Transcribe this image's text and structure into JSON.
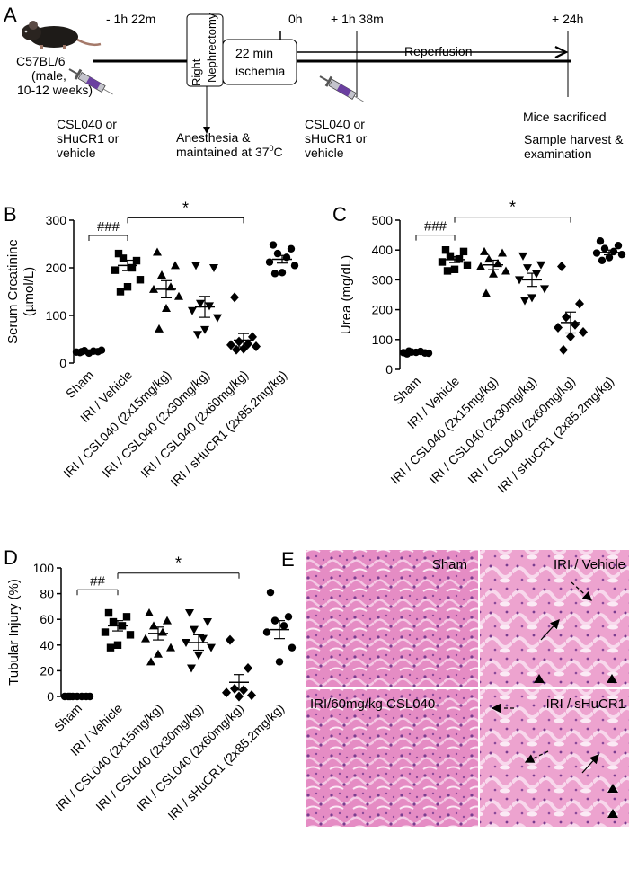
{
  "panel_letters": {
    "a": "A",
    "b": "B",
    "c": "C",
    "d": "D",
    "e": "E"
  },
  "timeline": {
    "strain": "C57BL/6",
    "strain_detail_1": "(male,",
    "strain_detail_2": "10-12 weeks)",
    "t_minus": "- 1h 22m",
    "t_zero": "0h",
    "t_plus": "+ 1h 38m",
    "t_end": "+ 24h",
    "nephrectomy_1": "Right",
    "nephrectomy_2": "Nephrectomy",
    "ischemia_1": "22 min",
    "ischemia_2": "ischemia",
    "reperfusion": "Reperfusion",
    "dose_pre": [
      "CSL040 or",
      "sHuCR1 or",
      "vehicle"
    ],
    "anesthesia_1": "Anesthesia &",
    "anesthesia_2": "maintained at 37",
    "anesthesia_sup": "0",
    "anesthesia_unit": "C",
    "dose_post": [
      "CSL040 or",
      "sHuCR1 or",
      "vehicle"
    ],
    "sacrificed": "Mice sacrificed",
    "harvest_1": "Sample harvest &",
    "harvest_2": "examination"
  },
  "categories": [
    "Sham",
    "IRI / Vehicle",
    "IRI / CSL040 (2x15mg/kg)",
    "IRI / CSL040 (2x30mg/kg)",
    "IRI / CSL040 (2x60mg/kg)",
    "IRI / sHuCR1 (2x85.2mg/kg)"
  ],
  "chart_data": [
    {
      "type": "scatter",
      "ylabel": "Serum Creatinine",
      "ylabel_unit": "(µmol/L)",
      "ylim": [
        0,
        300
      ],
      "yticks": [
        0,
        100,
        200,
        300
      ],
      "markers": [
        "circle",
        "square",
        "triangle",
        "triangle-down",
        "diamond",
        "circle"
      ],
      "annotations": [
        {
          "text": "###",
          "from": 0,
          "to": 1,
          "y": 268
        },
        {
          "text": "*",
          "from": 1,
          "to": 4,
          "y": 305
        }
      ],
      "series": [
        {
          "points": [
            22,
            24,
            26,
            25,
            23,
            27,
            21,
            24
          ],
          "mean": 24,
          "sem": 2
        },
        {
          "points": [
            230,
            215,
            220,
            200,
            195,
            175,
            160,
            150
          ],
          "mean": 205,
          "sem": 11
        },
        {
          "points": [
            233,
            205,
            185,
            160,
            155,
            140,
            115,
            72
          ],
          "mean": 155,
          "sem": 18
        },
        {
          "points": [
            205,
            200,
            125,
            120,
            110,
            95,
            70,
            60
          ],
          "mean": 118,
          "sem": 22
        },
        {
          "points": [
            138,
            55,
            45,
            40,
            38,
            35,
            30,
            28
          ],
          "mean": 48,
          "sem": 14
        },
        {
          "points": [
            248,
            240,
            230,
            222,
            212,
            205,
            190,
            188
          ],
          "mean": 218,
          "sem": 8
        }
      ]
    },
    {
      "type": "scatter",
      "ylabel": "Urea (mg/dL)",
      "ylabel_unit": "",
      "ylim": [
        0,
        500
      ],
      "yticks": [
        0,
        100,
        200,
        300,
        400,
        500
      ],
      "markers": [
        "circle",
        "square",
        "triangle",
        "triangle-down",
        "diamond",
        "circle"
      ],
      "annotations": [
        {
          "text": "###",
          "from": 0,
          "to": 1,
          "y": 450
        },
        {
          "text": "*",
          "from": 1,
          "to": 4,
          "y": 510
        }
      ],
      "series": [
        {
          "points": [
            52,
            55,
            58,
            60,
            56,
            54,
            57,
            61
          ],
          "mean": 57,
          "sem": 3
        },
        {
          "points": [
            400,
            395,
            380,
            370,
            360,
            350,
            335,
            330
          ],
          "mean": 368,
          "sem": 10
        },
        {
          "points": [
            395,
            390,
            370,
            355,
            345,
            330,
            320,
            255
          ],
          "mean": 350,
          "sem": 16
        },
        {
          "points": [
            380,
            350,
            340,
            320,
            300,
            270,
            240,
            230
          ],
          "mean": 300,
          "sem": 22
        },
        {
          "points": [
            345,
            220,
            175,
            150,
            140,
            125,
            110,
            65
          ],
          "mean": 157,
          "sem": 35
        },
        {
          "points": [
            430,
            415,
            405,
            395,
            390,
            385,
            375,
            365
          ],
          "mean": 392,
          "sem": 8
        }
      ]
    },
    {
      "type": "scatter",
      "ylabel": "Tubular Injury (%)",
      "ylabel_unit": "",
      "ylim": [
        0,
        100
      ],
      "yticks": [
        0,
        20,
        40,
        60,
        80,
        100
      ],
      "markers": [
        "circle",
        "square",
        "triangle",
        "triangle-down",
        "diamond",
        "circle"
      ],
      "annotations": [
        {
          "text": "##",
          "from": 0,
          "to": 1,
          "y": 83
        },
        {
          "text": "*",
          "from": 1,
          "to": 4,
          "y": 96
        }
      ],
      "series": [
        {
          "points": [
            0,
            0,
            0,
            0,
            0,
            0,
            0,
            0
          ],
          "mean": 0,
          "sem": 0
        },
        {
          "points": [
            65,
            62,
            58,
            55,
            50,
            48,
            40,
            38
          ],
          "mean": 55,
          "sem": 4
        },
        {
          "points": [
            65,
            59,
            55,
            50,
            45,
            38,
            33,
            27
          ],
          "mean": 49,
          "sem": 5
        },
        {
          "points": [
            65,
            58,
            52,
            45,
            42,
            38,
            32,
            22
          ],
          "mean": 42,
          "sem": 6
        },
        {
          "points": [
            44,
            22,
            6,
            5,
            3,
            1,
            0
          ],
          "mean": 11,
          "sem": 6
        },
        {
          "points": [
            81,
            62,
            59,
            55,
            50,
            38,
            27
          ],
          "mean": 52,
          "sem": 7
        }
      ]
    }
  ],
  "histology": {
    "sham": "Sham",
    "vehicle": "IRI / Vehicle",
    "csl040": "IRI/60mg/kg CSL040",
    "shucr1": "IRI / sHuCR1"
  }
}
